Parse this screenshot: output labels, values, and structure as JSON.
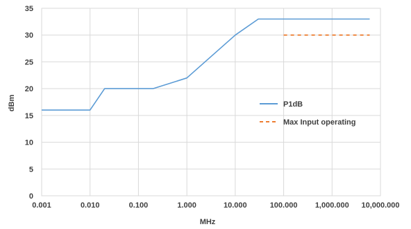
{
  "chart_data": {
    "type": "line",
    "xscale": "log",
    "xlim": [
      0.001,
      10000
    ],
    "ylim": [
      0,
      35
    ],
    "xlabel": "MHz",
    "ylabel": "dBm",
    "grid": true,
    "legend_position": "right",
    "x_tick_values": [
      0.001,
      0.01,
      0.1,
      1,
      10,
      100,
      1000,
      10000
    ],
    "x_tick_labels": [
      "0.001",
      "0.010",
      "0.100",
      "1.000",
      "10.000",
      "100.000",
      "1,000.000",
      "10,000.000"
    ],
    "y_ticks": [
      0,
      5,
      10,
      15,
      20,
      25,
      30,
      35
    ],
    "series": [
      {
        "name": "P1dB",
        "color": "#5B9BD5",
        "dash": "solid",
        "x": [
          0.001,
          0.01,
          0.02,
          0.2,
          1,
          10,
          30,
          6000
        ],
        "y": [
          16,
          16,
          20,
          20,
          22,
          30,
          33,
          33
        ]
      },
      {
        "name": "Max Input operating",
        "color": "#ED7D31",
        "dash": "dashed",
        "x": [
          100,
          6000
        ],
        "y": [
          30,
          30
        ]
      }
    ]
  }
}
